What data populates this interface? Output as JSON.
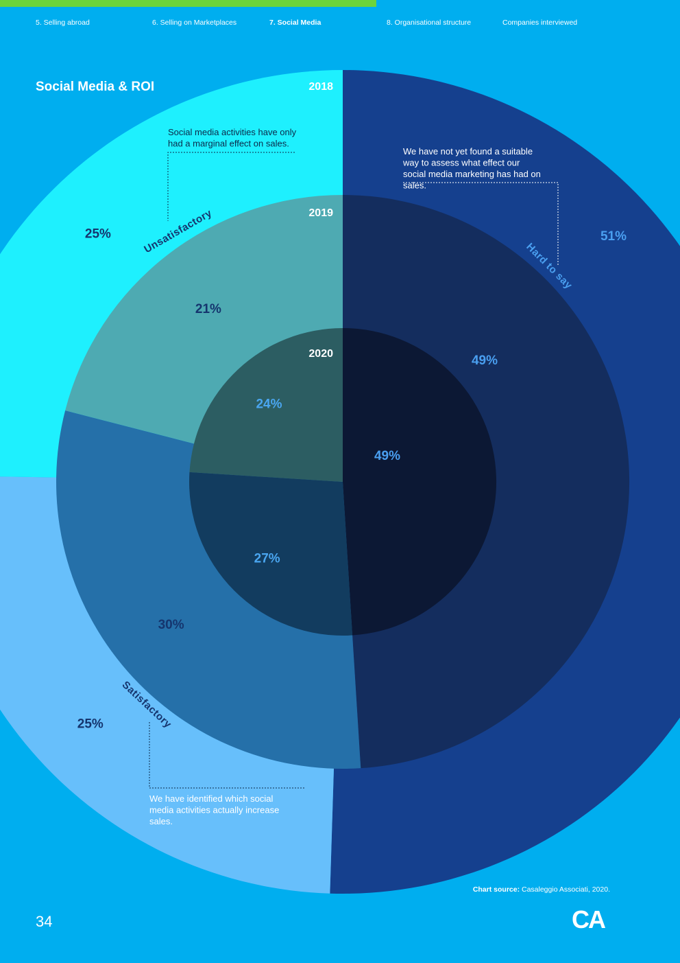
{
  "header": {
    "progress_fraction": 0.553,
    "progress_color": "#6cd43c",
    "nav": [
      {
        "label": "5. Selling abroad",
        "active": false
      },
      {
        "label": "6. Selling on Marketplaces",
        "active": false
      },
      {
        "label": "7. Social Media",
        "active": true
      },
      {
        "label": "8. Organisational structure",
        "active": false
      },
      {
        "label": "Companies interviewed",
        "active": false
      }
    ]
  },
  "chart_data": {
    "type": "pie",
    "title": "Social Media & ROI",
    "rings": [
      {
        "label": "2018",
        "values": {
          "Unsatisfactory": 25,
          "Satisfactory": 25,
          "Hard to say": 51
        }
      },
      {
        "label": "2019",
        "values": {
          "Unsatisfactory": 21,
          "Satisfactory": 30,
          "Hard to say": 49
        }
      },
      {
        "label": "2020",
        "values": {
          "Unsatisfactory": 24,
          "Satisfactory": 27,
          "Hard to say": 49
        }
      }
    ],
    "categories": [
      "Hard to say",
      "Satisfactory",
      "Unsatisfactory"
    ],
    "value_labels": {
      "2018": {
        "Unsatisfactory": "25%",
        "Satisfactory": "25%",
        "Hard to say": "51%"
      },
      "2019": {
        "Unsatisfactory": "21%",
        "Satisfactory": "30%",
        "Hard to say": "49%"
      },
      "2020": {
        "Unsatisfactory": "24%",
        "Satisfactory": "27%",
        "Hard to say": "49%"
      }
    },
    "colors": {
      "2018": {
        "Unsatisfactory": "#1ef0fe",
        "Satisfactory": "#67bffb",
        "Hard to say": "#15408e"
      },
      "2019": {
        "Unsatisfactory": "#4eaab2",
        "Satisfactory": "#2570a9",
        "Hard to say": "#142d5e"
      },
      "2020": {
        "Unsatisfactory": "#2c5d62",
        "Satisfactory": "#123c5f",
        "Hard to say": "#0c1834"
      }
    },
    "annotations": {
      "Unsatisfactory": "Social media activities have only had a marginal effect on sales.",
      "Hard to say": "We have not yet found a suitable way to assess what effect our social media marketing has had on sales.",
      "Satisfactory": "We have identified which social media activities actually increase sales."
    }
  },
  "footer": {
    "source_label": "Chart source:",
    "source_text": " Casaleggio Associati, 2020.",
    "page_number": "34",
    "logo_text": "CA"
  }
}
